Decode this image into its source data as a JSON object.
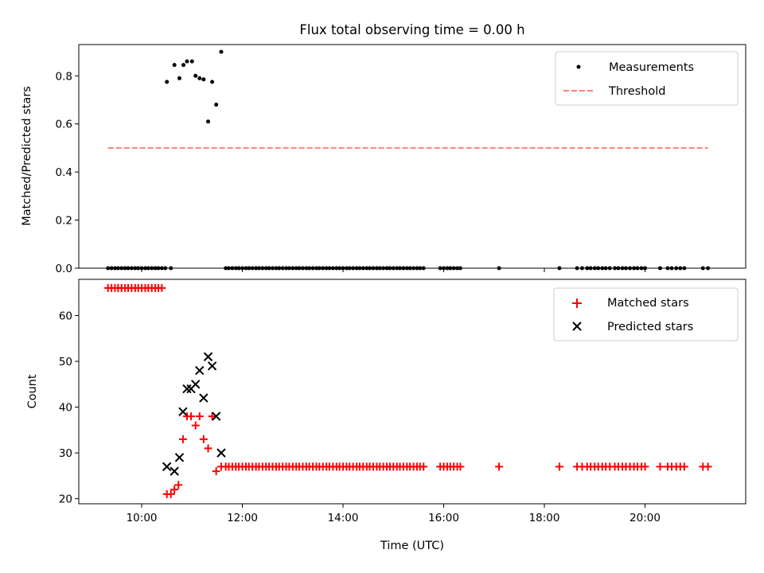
{
  "chart_data": [
    {
      "type": "scatter",
      "title": "Flux total observing time = 0.00 h",
      "xlabel": "",
      "ylabel": "Matched/Predicted stars",
      "ylim": [
        0,
        0.93
      ],
      "yticks": [
        0.0,
        0.2,
        0.4,
        0.6,
        0.8
      ],
      "ytick_labels": [
        "0.0",
        "0.2",
        "0.4",
        "0.6",
        "0.8"
      ],
      "xlim_hours": [
        8.75,
        22.0
      ],
      "xticks_hours": [
        10,
        12,
        14,
        16,
        18,
        20
      ],
      "legend_position": "upper right",
      "grid": false,
      "series": [
        {
          "name": "Measurements",
          "kind": "points",
          "color": "#000000",
          "points": [
            [
              9.33,
              0
            ],
            [
              9.4,
              0
            ],
            [
              9.47,
              0
            ],
            [
              9.53,
              0
            ],
            [
              9.6,
              0
            ],
            [
              9.67,
              0
            ],
            [
              9.73,
              0
            ],
            [
              9.8,
              0
            ],
            [
              9.87,
              0
            ],
            [
              9.93,
              0
            ],
            [
              10.0,
              0
            ],
            [
              10.07,
              0
            ],
            [
              10.13,
              0
            ],
            [
              10.2,
              0
            ],
            [
              10.27,
              0
            ],
            [
              10.33,
              0
            ],
            [
              10.4,
              0
            ],
            [
              10.47,
              0
            ],
            [
              10.5,
              0.775
            ],
            [
              10.58,
              0
            ],
            [
              10.65,
              0.845
            ],
            [
              10.75,
              0.79
            ],
            [
              10.83,
              0.845
            ],
            [
              10.9,
              0.86
            ],
            [
              11.0,
              0.86
            ],
            [
              11.07,
              0.8
            ],
            [
              11.15,
              0.79
            ],
            [
              11.23,
              0.785
            ],
            [
              11.32,
              0.61
            ],
            [
              11.4,
              0.775
            ],
            [
              11.48,
              0.68
            ],
            [
              11.58,
              0.9
            ],
            [
              11.67,
              0
            ],
            [
              11.73,
              0
            ],
            [
              11.8,
              0
            ],
            [
              11.87,
              0
            ],
            [
              11.93,
              0
            ],
            [
              12.0,
              0
            ],
            [
              12.07,
              0
            ],
            [
              12.13,
              0
            ],
            [
              12.2,
              0
            ],
            [
              12.27,
              0
            ],
            [
              12.33,
              0
            ],
            [
              12.4,
              0
            ],
            [
              12.47,
              0
            ],
            [
              12.53,
              0
            ],
            [
              12.6,
              0
            ],
            [
              12.67,
              0
            ],
            [
              12.73,
              0
            ],
            [
              12.8,
              0
            ],
            [
              12.87,
              0
            ],
            [
              12.93,
              0
            ],
            [
              13.0,
              0
            ],
            [
              13.07,
              0
            ],
            [
              13.13,
              0
            ],
            [
              13.2,
              0
            ],
            [
              13.27,
              0
            ],
            [
              13.33,
              0
            ],
            [
              13.4,
              0
            ],
            [
              13.47,
              0
            ],
            [
              13.53,
              0
            ],
            [
              13.6,
              0
            ],
            [
              13.67,
              0
            ],
            [
              13.73,
              0
            ],
            [
              13.8,
              0
            ],
            [
              13.87,
              0
            ],
            [
              13.93,
              0
            ],
            [
              14.0,
              0
            ],
            [
              14.07,
              0
            ],
            [
              14.13,
              0
            ],
            [
              14.2,
              0
            ],
            [
              14.27,
              0
            ],
            [
              14.33,
              0
            ],
            [
              14.4,
              0
            ],
            [
              14.47,
              0
            ],
            [
              14.53,
              0
            ],
            [
              14.6,
              0
            ],
            [
              14.67,
              0
            ],
            [
              14.73,
              0
            ],
            [
              14.8,
              0
            ],
            [
              14.87,
              0
            ],
            [
              14.93,
              0
            ],
            [
              15.0,
              0
            ],
            [
              15.07,
              0
            ],
            [
              15.13,
              0
            ],
            [
              15.2,
              0
            ],
            [
              15.27,
              0
            ],
            [
              15.33,
              0
            ],
            [
              15.4,
              0
            ],
            [
              15.47,
              0
            ],
            [
              15.53,
              0
            ],
            [
              15.6,
              0
            ],
            [
              15.93,
              0
            ],
            [
              16.0,
              0
            ],
            [
              16.07,
              0
            ],
            [
              16.13,
              0
            ],
            [
              16.2,
              0
            ],
            [
              16.27,
              0
            ],
            [
              16.33,
              0
            ],
            [
              17.1,
              0
            ],
            [
              18.3,
              0
            ],
            [
              18.65,
              0
            ],
            [
              18.75,
              0
            ],
            [
              18.85,
              0
            ],
            [
              18.92,
              0
            ],
            [
              19.0,
              0
            ],
            [
              19.07,
              0
            ],
            [
              19.15,
              0
            ],
            [
              19.22,
              0
            ],
            [
              19.3,
              0
            ],
            [
              19.4,
              0
            ],
            [
              19.47,
              0
            ],
            [
              19.55,
              0
            ],
            [
              19.62,
              0
            ],
            [
              19.7,
              0
            ],
            [
              19.78,
              0
            ],
            [
              19.85,
              0
            ],
            [
              19.93,
              0
            ],
            [
              20.0,
              0
            ],
            [
              20.3,
              0
            ],
            [
              20.45,
              0
            ],
            [
              20.53,
              0
            ],
            [
              20.62,
              0
            ],
            [
              20.7,
              0
            ],
            [
              20.78,
              0
            ],
            [
              21.15,
              0
            ],
            [
              21.25,
              0
            ]
          ]
        },
        {
          "name": "Threshold",
          "kind": "dashed-line",
          "color": "#ff7f7f",
          "points": [
            [
              9.33,
              0.5
            ],
            [
              21.25,
              0.5
            ]
          ]
        }
      ]
    },
    {
      "type": "scatter",
      "title": "",
      "xlabel": "Time (UTC)",
      "ylabel": "Count",
      "ylim": [
        18.9,
        67.9
      ],
      "yticks": [
        20,
        30,
        40,
        50,
        60
      ],
      "ytick_labels": [
        "20",
        "30",
        "40",
        "50",
        "60"
      ],
      "xlim_hours": [
        8.75,
        22.0
      ],
      "xticks_hours": [
        10,
        12,
        14,
        16,
        18,
        20
      ],
      "xtick_labels": [
        "10:00",
        "12:00",
        "14:00",
        "16:00",
        "18:00",
        "20:00"
      ],
      "legend_position": "upper right",
      "grid": false,
      "series": [
        {
          "name": "Matched stars",
          "kind": "plus",
          "color": "#ff0000",
          "points": [
            [
              9.33,
              66
            ],
            [
              9.4,
              66
            ],
            [
              9.47,
              66
            ],
            [
              9.53,
              66
            ],
            [
              9.6,
              66
            ],
            [
              9.67,
              66
            ],
            [
              9.73,
              66
            ],
            [
              9.8,
              66
            ],
            [
              9.87,
              66
            ],
            [
              9.93,
              66
            ],
            [
              10.0,
              66
            ],
            [
              10.07,
              66
            ],
            [
              10.13,
              66
            ],
            [
              10.2,
              66
            ],
            [
              10.27,
              66
            ],
            [
              10.33,
              66
            ],
            [
              10.4,
              66
            ],
            [
              10.5,
              21
            ],
            [
              10.58,
              21
            ],
            [
              10.65,
              22
            ],
            [
              10.73,
              23
            ],
            [
              10.82,
              33
            ],
            [
              10.9,
              38
            ],
            [
              10.98,
              38
            ],
            [
              11.07,
              36
            ],
            [
              11.15,
              38
            ],
            [
              11.23,
              33
            ],
            [
              11.32,
              31
            ],
            [
              11.4,
              38
            ],
            [
              11.48,
              26
            ],
            [
              11.58,
              27
            ],
            [
              11.67,
              27
            ],
            [
              11.73,
              27
            ],
            [
              11.8,
              27
            ],
            [
              11.87,
              27
            ],
            [
              11.93,
              27
            ],
            [
              12.0,
              27
            ],
            [
              12.07,
              27
            ],
            [
              12.13,
              27
            ],
            [
              12.2,
              27
            ],
            [
              12.27,
              27
            ],
            [
              12.33,
              27
            ],
            [
              12.4,
              27
            ],
            [
              12.47,
              27
            ],
            [
              12.53,
              27
            ],
            [
              12.6,
              27
            ],
            [
              12.67,
              27
            ],
            [
              12.73,
              27
            ],
            [
              12.8,
              27
            ],
            [
              12.87,
              27
            ],
            [
              12.93,
              27
            ],
            [
              13.0,
              27
            ],
            [
              13.07,
              27
            ],
            [
              13.13,
              27
            ],
            [
              13.2,
              27
            ],
            [
              13.27,
              27
            ],
            [
              13.33,
              27
            ],
            [
              13.4,
              27
            ],
            [
              13.47,
              27
            ],
            [
              13.53,
              27
            ],
            [
              13.6,
              27
            ],
            [
              13.67,
              27
            ],
            [
              13.73,
              27
            ],
            [
              13.8,
              27
            ],
            [
              13.87,
              27
            ],
            [
              13.93,
              27
            ],
            [
              14.0,
              27
            ],
            [
              14.07,
              27
            ],
            [
              14.13,
              27
            ],
            [
              14.2,
              27
            ],
            [
              14.27,
              27
            ],
            [
              14.33,
              27
            ],
            [
              14.4,
              27
            ],
            [
              14.47,
              27
            ],
            [
              14.53,
              27
            ],
            [
              14.6,
              27
            ],
            [
              14.67,
              27
            ],
            [
              14.73,
              27
            ],
            [
              14.8,
              27
            ],
            [
              14.87,
              27
            ],
            [
              14.93,
              27
            ],
            [
              15.0,
              27
            ],
            [
              15.07,
              27
            ],
            [
              15.13,
              27
            ],
            [
              15.2,
              27
            ],
            [
              15.27,
              27
            ],
            [
              15.33,
              27
            ],
            [
              15.4,
              27
            ],
            [
              15.47,
              27
            ],
            [
              15.53,
              27
            ],
            [
              15.6,
              27
            ],
            [
              15.93,
              27
            ],
            [
              16.0,
              27
            ],
            [
              16.07,
              27
            ],
            [
              16.13,
              27
            ],
            [
              16.2,
              27
            ],
            [
              16.27,
              27
            ],
            [
              16.33,
              27
            ],
            [
              17.1,
              27
            ],
            [
              18.3,
              27
            ],
            [
              18.65,
              27
            ],
            [
              18.75,
              27
            ],
            [
              18.85,
              27
            ],
            [
              18.92,
              27
            ],
            [
              19.0,
              27
            ],
            [
              19.07,
              27
            ],
            [
              19.15,
              27
            ],
            [
              19.22,
              27
            ],
            [
              19.3,
              27
            ],
            [
              19.4,
              27
            ],
            [
              19.47,
              27
            ],
            [
              19.55,
              27
            ],
            [
              19.62,
              27
            ],
            [
              19.7,
              27
            ],
            [
              19.78,
              27
            ],
            [
              19.85,
              27
            ],
            [
              19.93,
              27
            ],
            [
              20.0,
              27
            ],
            [
              20.3,
              27
            ],
            [
              20.45,
              27
            ],
            [
              20.53,
              27
            ],
            [
              20.62,
              27
            ],
            [
              20.7,
              27
            ],
            [
              20.78,
              27
            ],
            [
              21.15,
              27
            ],
            [
              21.25,
              27
            ]
          ]
        },
        {
          "name": "Predicted stars",
          "kind": "x",
          "color": "#000000",
          "points": [
            [
              10.5,
              27
            ],
            [
              10.65,
              26
            ],
            [
              10.75,
              29
            ],
            [
              10.82,
              39
            ],
            [
              10.9,
              44
            ],
            [
              10.98,
              44
            ],
            [
              11.07,
              45
            ],
            [
              11.15,
              48
            ],
            [
              11.23,
              42
            ],
            [
              11.32,
              51
            ],
            [
              11.4,
              49
            ],
            [
              11.48,
              38
            ],
            [
              11.58,
              30
            ]
          ]
        }
      ]
    }
  ]
}
